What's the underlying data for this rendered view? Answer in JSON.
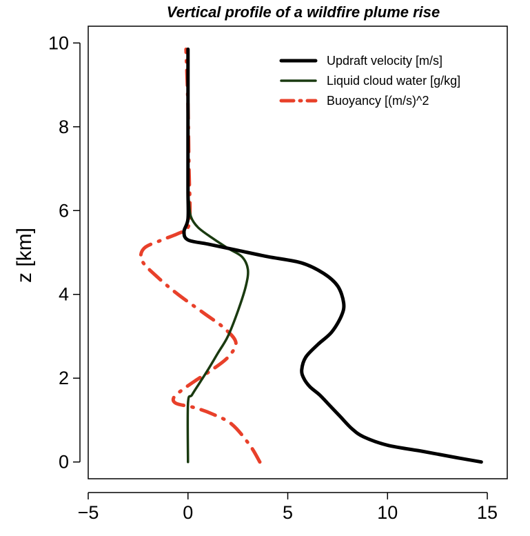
{
  "chart_data": {
    "type": "line",
    "title": "Vertical profile of a wildfire plume rise",
    "xlabel": "",
    "ylabel": "z [km]",
    "xlim": [
      -5,
      16
    ],
    "ylim": [
      -0.4,
      10.4
    ],
    "xticks": [
      -5,
      0,
      5,
      10,
      15
    ],
    "yticks": [
      0,
      2,
      4,
      6,
      8,
      10
    ],
    "grid": false,
    "legend": "top-right",
    "series": [
      {
        "name": "Updraft velocity [m/s]",
        "color": "#000000",
        "style": "solid",
        "points": [
          [
            14.7,
            0.0
          ],
          [
            13.5,
            0.1
          ],
          [
            11.8,
            0.25
          ],
          [
            10.0,
            0.4
          ],
          [
            8.8,
            0.6
          ],
          [
            8.2,
            0.8
          ],
          [
            7.6,
            1.1
          ],
          [
            7.0,
            1.4
          ],
          [
            6.6,
            1.6
          ],
          [
            6.1,
            1.8
          ],
          [
            5.8,
            2.0
          ],
          [
            5.7,
            2.2
          ],
          [
            5.9,
            2.5
          ],
          [
            6.5,
            2.8
          ],
          [
            7.2,
            3.1
          ],
          [
            7.7,
            3.5
          ],
          [
            7.8,
            3.8
          ],
          [
            7.5,
            4.2
          ],
          [
            6.8,
            4.5
          ],
          [
            5.7,
            4.75
          ],
          [
            4.0,
            4.9
          ],
          [
            2.5,
            5.05
          ],
          [
            1.0,
            5.2
          ],
          [
            0.0,
            5.3
          ],
          [
            -0.2,
            5.5
          ],
          [
            0.0,
            5.8
          ],
          [
            0.0,
            6.5
          ],
          [
            0.0,
            8.0
          ],
          [
            0.0,
            9.85
          ]
        ]
      },
      {
        "name": "Liquid cloud water [g/kg]",
        "color": "#1a3a10",
        "style": "solid",
        "points": [
          [
            0.0,
            0.0
          ],
          [
            0.0,
            1.4
          ],
          [
            0.2,
            1.6
          ],
          [
            0.6,
            1.9
          ],
          [
            1.0,
            2.2
          ],
          [
            1.5,
            2.6
          ],
          [
            2.0,
            3.0
          ],
          [
            2.5,
            3.6
          ],
          [
            2.9,
            4.2
          ],
          [
            3.0,
            4.6
          ],
          [
            2.7,
            4.9
          ],
          [
            2.0,
            5.1
          ],
          [
            1.2,
            5.35
          ],
          [
            0.5,
            5.6
          ],
          [
            0.15,
            5.85
          ],
          [
            0.05,
            6.2
          ],
          [
            0.0,
            6.6
          ],
          [
            0.0,
            8.0
          ],
          [
            0.0,
            9.85
          ]
        ]
      },
      {
        "name": "Buoyancy [(m/s)^2",
        "color": "#e8402a",
        "style": "dashdot",
        "points": [
          [
            3.6,
            0.0
          ],
          [
            3.1,
            0.4
          ],
          [
            2.2,
            0.9
          ],
          [
            1.2,
            1.15
          ],
          [
            0.3,
            1.3
          ],
          [
            -0.6,
            1.4
          ],
          [
            -0.7,
            1.55
          ],
          [
            -0.2,
            1.75
          ],
          [
            0.4,
            1.95
          ],
          [
            1.2,
            2.2
          ],
          [
            2.0,
            2.5
          ],
          [
            2.4,
            2.85
          ],
          [
            1.8,
            3.2
          ],
          [
            0.8,
            3.55
          ],
          [
            -0.5,
            4.0
          ],
          [
            -1.5,
            4.4
          ],
          [
            -2.3,
            4.8
          ],
          [
            -2.2,
            5.1
          ],
          [
            -1.3,
            5.3
          ],
          [
            -0.5,
            5.45
          ],
          [
            0.0,
            5.6
          ],
          [
            0.1,
            6.0
          ],
          [
            0.05,
            7.0
          ],
          [
            0.0,
            8.5
          ],
          [
            -0.1,
            9.85
          ]
        ]
      }
    ]
  }
}
